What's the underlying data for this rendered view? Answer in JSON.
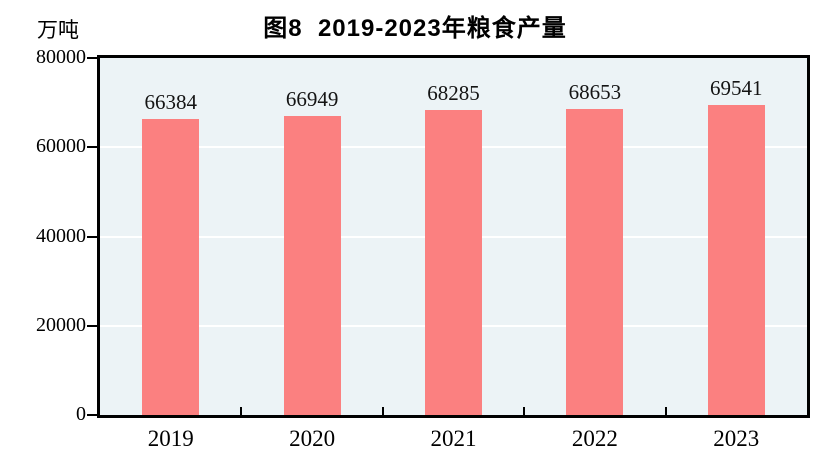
{
  "figure": {
    "title": "图8  2019-2023年粮食产量",
    "unit_label": "万吨"
  },
  "chart_data": {
    "type": "bar",
    "title": "图8  2019-2023年粮食产量",
    "ylabel": "万吨",
    "xlabel": "",
    "categories": [
      "2019",
      "2020",
      "2021",
      "2022",
      "2023"
    ],
    "values": [
      66384,
      66949,
      68285,
      68653,
      69541
    ],
    "data_labels": [
      "66384",
      "66949",
      "68285",
      "68653",
      "69541"
    ],
    "y_ticks": [
      0,
      20000,
      40000,
      60000,
      80000
    ],
    "y_tick_labels": [
      "0",
      "20000",
      "40000",
      "60000",
      "80000"
    ],
    "ylim": [
      0,
      80000
    ],
    "grid": true,
    "legend_position": "none",
    "colors": {
      "bar": "#FB8080",
      "plot_background": "#ECF3F6",
      "gridline": "#FFFFFF",
      "axis": "#000000",
      "title_text": "#000000",
      "label_text": "#141414"
    }
  }
}
